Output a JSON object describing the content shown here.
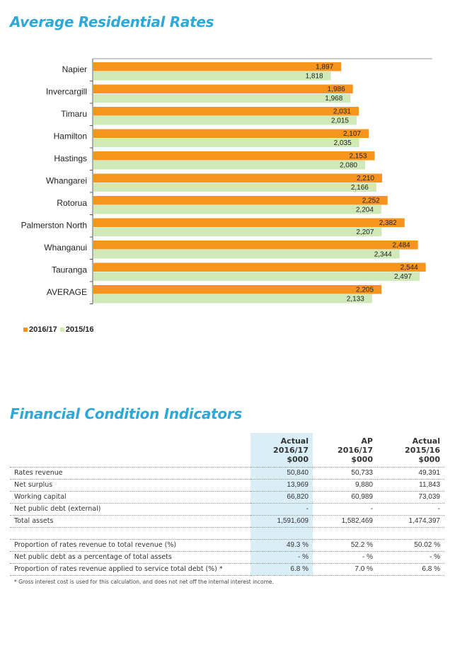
{
  "titles": {
    "chart": "Average Residential Rates",
    "table": "Financial Condition Indicators"
  },
  "chart_data": {
    "type": "bar",
    "orientation": "horizontal",
    "categories": [
      "Napier",
      "Invercargill",
      "Timaru",
      "Hamilton",
      "Hastings",
      "Whangarei",
      "Rotorua",
      "Palmerston North",
      "Whanganui",
      "Tauranga",
      "AVERAGE"
    ],
    "series": [
      {
        "name": "2016/17",
        "color": "#f7941d",
        "values": [
          1897,
          1986,
          2031,
          2107,
          2153,
          2210,
          2252,
          2382,
          2484,
          2544,
          2205
        ],
        "labels": [
          "1,897",
          "1,986",
          "2,031",
          "2,107",
          "2,153",
          "2,210",
          "2,252",
          "2,382",
          "2,484",
          "2,544",
          "2,205"
        ]
      },
      {
        "name": "2015/16",
        "color": "#cfe9b8",
        "values": [
          1818,
          1968,
          2015,
          2035,
          2080,
          2166,
          2204,
          2207,
          2344,
          2497,
          2133
        ],
        "labels": [
          "1,818",
          "1,968",
          "2,015",
          "2,035",
          "2,080",
          "2,166",
          "2,204",
          "2,207",
          "2,344",
          "2,497",
          "2,133"
        ]
      }
    ],
    "xlim": [
      0,
      2600
    ],
    "grid": false,
    "legend_position": "bottom-left"
  },
  "legend": [
    {
      "label": "2016/17",
      "color": "#f7941d"
    },
    {
      "label": "2015/16",
      "color": "#cfe9b8"
    }
  ],
  "table": {
    "headers": [
      {
        "line1": "Actual",
        "line2": "2016/17",
        "line3": "$000"
      },
      {
        "line1": "AP",
        "line2": "2016/17",
        "line3": "$000"
      },
      {
        "line1": "Actual",
        "line2": "2015/16",
        "line3": "$000"
      }
    ],
    "rows": [
      {
        "label": "Rates revenue",
        "values": [
          "50,840",
          "50,733",
          "49,391"
        ]
      },
      {
        "label": "Net surplus",
        "values": [
          "13,969",
          "9,880",
          "11,843"
        ]
      },
      {
        "label": "Working capital",
        "values": [
          "66,820",
          "60,989",
          "73,039"
        ]
      },
      {
        "label": "Net public debt (external)",
        "values": [
          "-",
          "-",
          "-"
        ]
      },
      {
        "label": "Total assets",
        "values": [
          "1,591,609",
          "1,582,469",
          "1,474,397"
        ]
      }
    ],
    "rows2": [
      {
        "label": "Proportion of rates revenue to total revenue (%)",
        "values": [
          "49.3 %",
          "52.2 %",
          "50.02 %"
        ]
      },
      {
        "label": "Net public debt as a percentage of total assets",
        "values": [
          "- %",
          "- %",
          "- %"
        ]
      },
      {
        "label": "Proportion of rates revenue applied to service total debt (%) *",
        "values": [
          "6.8 %",
          "7.0 %",
          "6.8 %"
        ]
      }
    ]
  },
  "footnote": "* Gross interest cost is used for this calculation, and does not net off the internal interest income."
}
